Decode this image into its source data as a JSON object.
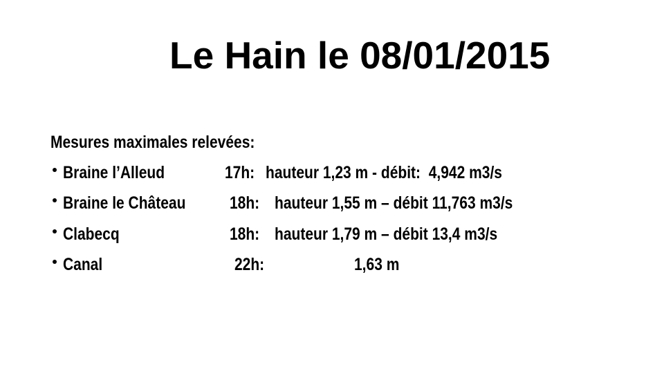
{
  "title": "Le Hain le 08/01/2015",
  "heading": "Mesures maximales relevées:",
  "rows": [
    {
      "station": "Braine l’Alleud",
      "time": "17h:",
      "measure": "hauteur 1,23 m - débit:  4,942 m3/s"
    },
    {
      "station": "Braine le Château",
      "time": "18h:",
      "measure": "hauteur 1,55 m – débit 11,763 m3/s"
    },
    {
      "station": "Clabecq",
      "time": "18h:",
      "measure": "hauteur 1,79 m – débit 13,4 m3/s"
    },
    {
      "station": "Canal",
      "time": "22h:",
      "measure": "1,63 m"
    }
  ]
}
